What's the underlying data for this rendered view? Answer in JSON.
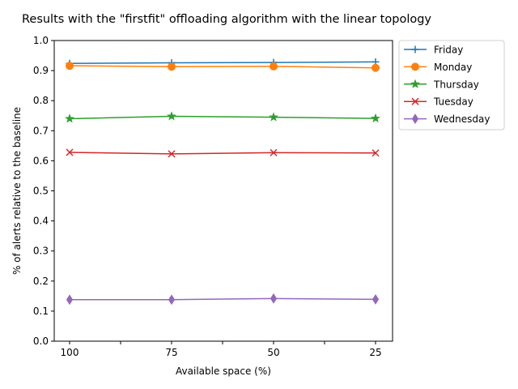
{
  "chart_data": {
    "type": "line",
    "title": "Results with the \"firstfit\" offloading algorithm with the linear topology",
    "xlabel": "Available space (%)",
    "ylabel": "% of alerts relative to the baseline",
    "categories": [
      "100",
      "75",
      "50",
      "25"
    ],
    "ylim": [
      0,
      1.0
    ],
    "yticks": [
      "0.0",
      "0.1",
      "0.2",
      "0.3",
      "0.4",
      "0.5",
      "0.6",
      "0.7",
      "0.8",
      "0.9",
      "1.0"
    ],
    "legend_position": "outside-top-right",
    "grid": false,
    "series": [
      {
        "name": "Friday",
        "color": "#1f77b4",
        "marker": "plus",
        "values": [
          0.924,
          0.926,
          0.927,
          0.929
        ]
      },
      {
        "name": "Monday",
        "color": "#ff7f0e",
        "marker": "circle",
        "values": [
          0.916,
          0.913,
          0.914,
          0.909
        ]
      },
      {
        "name": "Thursday",
        "color": "#2ca02c",
        "marker": "star",
        "values": [
          0.74,
          0.748,
          0.745,
          0.741
        ]
      },
      {
        "name": "Tuesday",
        "color": "#d62728",
        "marker": "x",
        "values": [
          0.628,
          0.623,
          0.627,
          0.626
        ]
      },
      {
        "name": "Wednesday",
        "color": "#9467bd",
        "marker": "diamond",
        "values": [
          0.138,
          0.138,
          0.142,
          0.139
        ]
      }
    ]
  }
}
